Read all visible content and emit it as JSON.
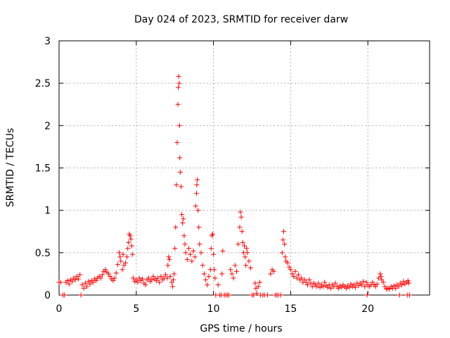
{
  "chart_data": {
    "type": "scatter",
    "title": "Day 024 of 2023, SRMTID for receiver darw",
    "xlabel": "GPS time / hours",
    "ylabel": "SRMTID / TECUs",
    "xlim": [
      0,
      24
    ],
    "ylim": [
      0,
      3
    ],
    "x_ticks": [
      0,
      5,
      10,
      15,
      20
    ],
    "x_tick_labels": [
      "0",
      "5",
      "10",
      "15",
      "20"
    ],
    "y_ticks": [
      0,
      0.5,
      1,
      1.5,
      2,
      2.5,
      3
    ],
    "y_tick_labels": [
      "0",
      "0.5",
      "1",
      "1.5",
      "2",
      "2.5",
      "3"
    ],
    "grid": true,
    "marker": "+",
    "marker_color": "#ff0000",
    "series": [
      {
        "name": "SRMTID",
        "points": [
          [
            0.0,
            0.15
          ],
          [
            0.1,
            0.15
          ],
          [
            0.25,
            0.0
          ],
          [
            0.35,
            0.0
          ],
          [
            0.45,
            0.15
          ],
          [
            0.55,
            0.17
          ],
          [
            0.65,
            0.13
          ],
          [
            0.75,
            0.18
          ],
          [
            0.85,
            0.16
          ],
          [
            0.95,
            0.2
          ],
          [
            1.05,
            0.18
          ],
          [
            1.15,
            0.22
          ],
          [
            1.25,
            0.19
          ],
          [
            1.35,
            0.24
          ],
          [
            1.42,
            0.0
          ],
          [
            1.5,
            0.12
          ],
          [
            1.6,
            0.08
          ],
          [
            1.7,
            0.14
          ],
          [
            1.8,
            0.1
          ],
          [
            1.9,
            0.16
          ],
          [
            2.0,
            0.13
          ],
          [
            2.1,
            0.17
          ],
          [
            2.2,
            0.15
          ],
          [
            2.3,
            0.19
          ],
          [
            2.4,
            0.17
          ],
          [
            2.5,
            0.2
          ],
          [
            2.6,
            0.22
          ],
          [
            2.7,
            0.2
          ],
          [
            2.8,
            0.24
          ],
          [
            2.9,
            0.28
          ],
          [
            3.0,
            0.3
          ],
          [
            3.1,
            0.27
          ],
          [
            3.2,
            0.25
          ],
          [
            3.3,
            0.22
          ],
          [
            3.4,
            0.19
          ],
          [
            3.5,
            0.17
          ],
          [
            3.6,
            0.2
          ],
          [
            3.7,
            0.26
          ],
          [
            3.8,
            0.36
          ],
          [
            3.9,
            0.5
          ],
          [
            3.95,
            0.45
          ],
          [
            4.0,
            0.4
          ],
          [
            4.1,
            0.3
          ],
          [
            4.15,
            0.48
          ],
          [
            4.2,
            0.35
          ],
          [
            4.3,
            0.38
          ],
          [
            4.4,
            0.45
          ],
          [
            4.45,
            0.55
          ],
          [
            4.5,
            0.62
          ],
          [
            4.55,
            0.72
          ],
          [
            4.6,
            0.7
          ],
          [
            4.65,
            0.66
          ],
          [
            4.7,
            0.58
          ],
          [
            4.75,
            0.48
          ],
          [
            4.8,
            0.2
          ],
          [
            4.9,
            0.16
          ],
          [
            5.0,
            0.18
          ],
          [
            5.1,
            0.15
          ],
          [
            5.2,
            0.2
          ],
          [
            5.3,
            0.17
          ],
          [
            5.4,
            0.19
          ],
          [
            5.5,
            0.14
          ],
          [
            5.6,
            0.12
          ],
          [
            5.7,
            0.18
          ],
          [
            5.8,
            0.2
          ],
          [
            5.9,
            0.16
          ],
          [
            6.0,
            0.18
          ],
          [
            6.1,
            0.22
          ],
          [
            6.2,
            0.19
          ],
          [
            6.3,
            0.17
          ],
          [
            6.4,
            0.2
          ],
          [
            6.5,
            0.15
          ],
          [
            6.6,
            0.22
          ],
          [
            6.7,
            0.18
          ],
          [
            6.8,
            0.2
          ],
          [
            6.9,
            0.24
          ],
          [
            7.0,
            0.2
          ],
          [
            7.05,
            0.35
          ],
          [
            7.1,
            0.45
          ],
          [
            7.15,
            0.42
          ],
          [
            7.2,
            0.22
          ],
          [
            7.3,
            0.15
          ],
          [
            7.35,
            0.1
          ],
          [
            7.4,
            0.18
          ],
          [
            7.45,
            0.25
          ],
          [
            7.5,
            0.55
          ],
          [
            7.55,
            0.8
          ],
          [
            7.6,
            1.3
          ],
          [
            7.65,
            1.8
          ],
          [
            7.7,
            2.25
          ],
          [
            7.72,
            2.45
          ],
          [
            7.75,
            2.58
          ],
          [
            7.78,
            2.5
          ],
          [
            7.8,
            2.0
          ],
          [
            7.82,
            1.62
          ],
          [
            7.85,
            1.45
          ],
          [
            7.9,
            1.28
          ],
          [
            7.95,
            0.95
          ],
          [
            8.0,
            0.85
          ],
          [
            8.05,
            0.9
          ],
          [
            8.1,
            0.7
          ],
          [
            8.15,
            0.6
          ],
          [
            8.2,
            0.5
          ],
          [
            8.3,
            0.42
          ],
          [
            8.4,
            0.55
          ],
          [
            8.5,
            0.48
          ],
          [
            8.6,
            0.4
          ],
          [
            8.7,
            0.52
          ],
          [
            8.8,
            0.45
          ],
          [
            8.85,
            1.05
          ],
          [
            8.9,
            1.2
          ],
          [
            8.92,
            1.3
          ],
          [
            8.95,
            1.36
          ],
          [
            9.0,
            1.0
          ],
          [
            9.05,
            0.8
          ],
          [
            9.1,
            0.6
          ],
          [
            9.2,
            0.5
          ],
          [
            9.3,
            0.35
          ],
          [
            9.4,
            0.25
          ],
          [
            9.5,
            0.18
          ],
          [
            9.6,
            0.12
          ],
          [
            9.7,
            0.22
          ],
          [
            9.8,
            0.3
          ],
          [
            9.85,
            0.55
          ],
          [
            9.9,
            0.7
          ],
          [
            9.95,
            0.72
          ],
          [
            10.0,
            0.48
          ],
          [
            10.05,
            0.3
          ],
          [
            10.1,
            0.2
          ],
          [
            10.15,
            0.0
          ],
          [
            10.3,
            0.12
          ],
          [
            10.4,
            0.0
          ],
          [
            10.5,
            0.0
          ],
          [
            10.55,
            0.25
          ],
          [
            10.6,
            0.52
          ],
          [
            10.7,
            0.0
          ],
          [
            10.8,
            0.0
          ],
          [
            10.9,
            0.0
          ],
          [
            11.0,
            0.0
          ],
          [
            11.1,
            0.3
          ],
          [
            11.2,
            0.25
          ],
          [
            11.3,
            0.2
          ],
          [
            11.4,
            0.35
          ],
          [
            11.5,
            0.28
          ],
          [
            11.6,
            0.6
          ],
          [
            11.7,
            0.8
          ],
          [
            11.75,
            0.98
          ],
          [
            11.8,
            0.92
          ],
          [
            11.85,
            0.75
          ],
          [
            11.9,
            0.62
          ],
          [
            11.95,
            0.5
          ],
          [
            12.0,
            0.58
          ],
          [
            12.05,
            0.45
          ],
          [
            12.1,
            0.35
          ],
          [
            12.15,
            0.55
          ],
          [
            12.2,
            0.5
          ],
          [
            12.3,
            0.4
          ],
          [
            12.4,
            0.32
          ],
          [
            12.5,
            0.0
          ],
          [
            12.6,
            0.0
          ],
          [
            12.7,
            0.14
          ],
          [
            12.75,
            0.08
          ],
          [
            12.8,
            0.02
          ],
          [
            12.9,
            0.1
          ],
          [
            13.0,
            0.15
          ],
          [
            13.05,
            0.0
          ],
          [
            13.2,
            0.0
          ],
          [
            13.3,
            0.0
          ],
          [
            13.5,
            0.0
          ],
          [
            13.7,
            0.25
          ],
          [
            13.8,
            0.3
          ],
          [
            13.9,
            0.28
          ],
          [
            14.0,
            0.0
          ],
          [
            14.1,
            0.0
          ],
          [
            14.2,
            0.0
          ],
          [
            14.35,
            0.0
          ],
          [
            14.45,
            0.5
          ],
          [
            14.5,
            0.65
          ],
          [
            14.55,
            0.75
          ],
          [
            14.6,
            0.6
          ],
          [
            14.65,
            0.45
          ],
          [
            14.7,
            0.4
          ],
          [
            14.8,
            0.38
          ],
          [
            14.9,
            0.33
          ],
          [
            15.0,
            0.3
          ],
          [
            15.1,
            0.25
          ],
          [
            15.2,
            0.22
          ],
          [
            15.3,
            0.28
          ],
          [
            15.4,
            0.2
          ],
          [
            15.5,
            0.24
          ],
          [
            15.6,
            0.18
          ],
          [
            15.7,
            0.2
          ],
          [
            15.8,
            0.15
          ],
          [
            15.9,
            0.18
          ],
          [
            16.0,
            0.15
          ],
          [
            16.1,
            0.12
          ],
          [
            16.2,
            0.18
          ],
          [
            16.3,
            0.14
          ],
          [
            16.4,
            0.1
          ],
          [
            16.5,
            0.14
          ],
          [
            16.6,
            0.12
          ],
          [
            16.7,
            0.1
          ],
          [
            16.8,
            0.14
          ],
          [
            16.9,
            0.09
          ],
          [
            17.0,
            0.12
          ],
          [
            17.1,
            0.1
          ],
          [
            17.2,
            0.15
          ],
          [
            17.3,
            0.11
          ],
          [
            17.4,
            0.09
          ],
          [
            17.5,
            0.12
          ],
          [
            17.6,
            0.08
          ],
          [
            17.7,
            0.12
          ],
          [
            17.8,
            0.1
          ],
          [
            17.9,
            0.14
          ],
          [
            18.0,
            0.1
          ],
          [
            18.1,
            0.08
          ],
          [
            18.2,
            0.11
          ],
          [
            18.3,
            0.09
          ],
          [
            18.4,
            0.12
          ],
          [
            18.5,
            0.1
          ],
          [
            18.6,
            0.08
          ],
          [
            18.7,
            0.11
          ],
          [
            18.8,
            0.09
          ],
          [
            18.9,
            0.13
          ],
          [
            19.0,
            0.1
          ],
          [
            19.1,
            0.12
          ],
          [
            19.2,
            0.09
          ],
          [
            19.3,
            0.14
          ],
          [
            19.4,
            0.11
          ],
          [
            19.5,
            0.14
          ],
          [
            19.6,
            0.12
          ],
          [
            19.7,
            0.16
          ],
          [
            19.8,
            0.1
          ],
          [
            19.9,
            0.15
          ],
          [
            19.95,
            0.0
          ],
          [
            20.0,
            0.12
          ],
          [
            20.1,
            0.1
          ],
          [
            20.2,
            0.12
          ],
          [
            20.3,
            0.15
          ],
          [
            20.4,
            0.12
          ],
          [
            20.5,
            0.1
          ],
          [
            20.6,
            0.13
          ],
          [
            20.7,
            0.2
          ],
          [
            20.8,
            0.25
          ],
          [
            20.85,
            0.22
          ],
          [
            20.9,
            0.18
          ],
          [
            21.0,
            0.15
          ],
          [
            21.1,
            0.1
          ],
          [
            21.2,
            0.07
          ],
          [
            21.3,
            0.08
          ],
          [
            21.4,
            0.07
          ],
          [
            21.5,
            0.1
          ],
          [
            21.6,
            0.08
          ],
          [
            21.7,
            0.11
          ],
          [
            21.8,
            0.08
          ],
          [
            21.9,
            0.12
          ],
          [
            22.0,
            0.1
          ],
          [
            22.05,
            0.0
          ],
          [
            22.1,
            0.14
          ],
          [
            22.2,
            0.12
          ],
          [
            22.3,
            0.16
          ],
          [
            22.4,
            0.13
          ],
          [
            22.5,
            0.15
          ],
          [
            22.55,
            0.0
          ],
          [
            22.6,
            0.17
          ],
          [
            22.65,
            0.14
          ],
          [
            22.7,
            0.0
          ]
        ]
      }
    ]
  }
}
